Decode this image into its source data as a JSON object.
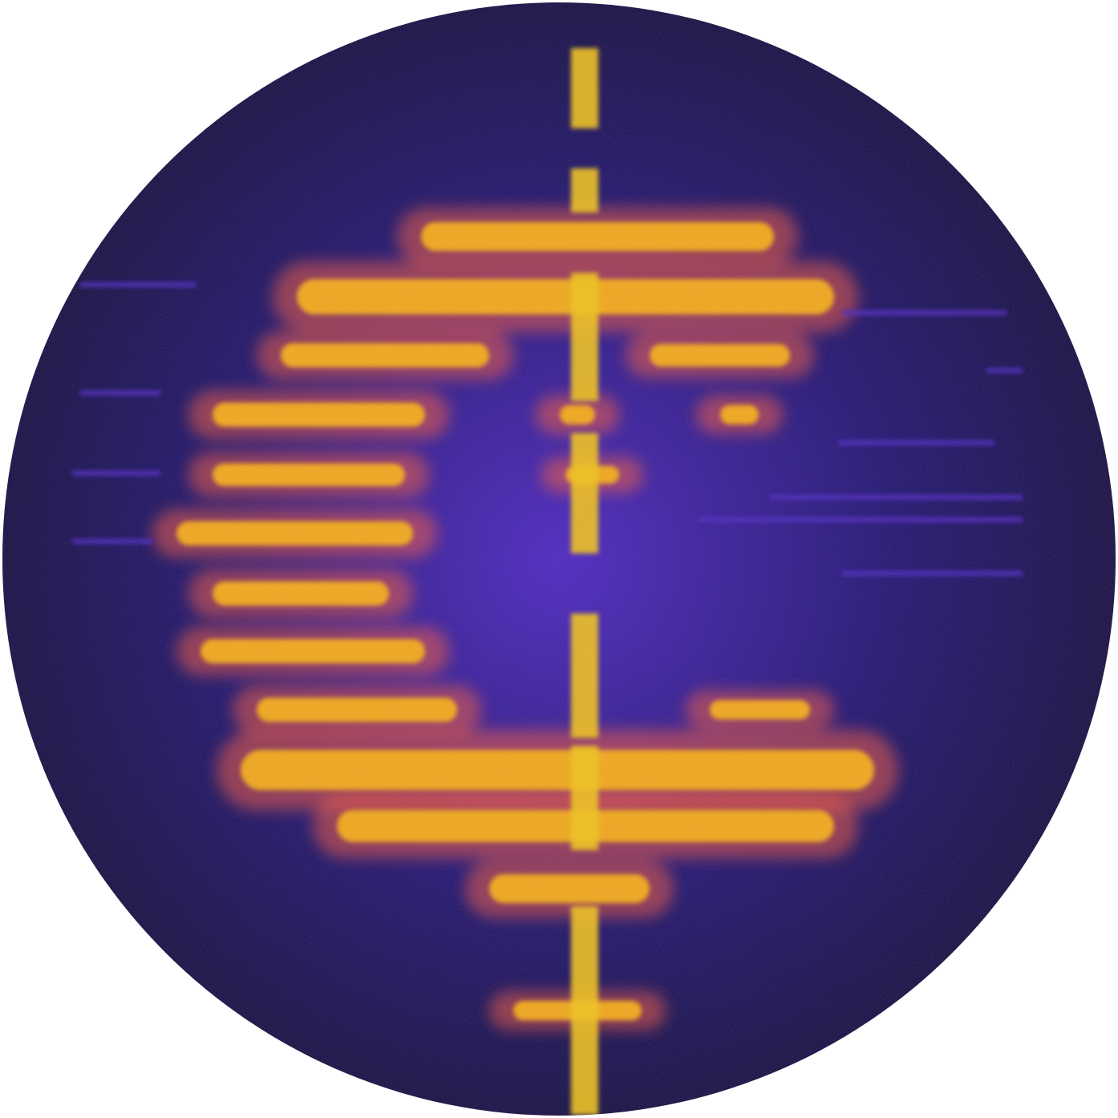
{
  "artwork": {
    "shape": "circle",
    "style": "spectrogram",
    "colors": {
      "background": "#ffffff",
      "edge": "#0a0820",
      "deep": "#1a1060",
      "glow": "#4a24b8",
      "mid": "#ff5a2a",
      "hot": "#ffb300",
      "peak": "#ffd000"
    }
  }
}
